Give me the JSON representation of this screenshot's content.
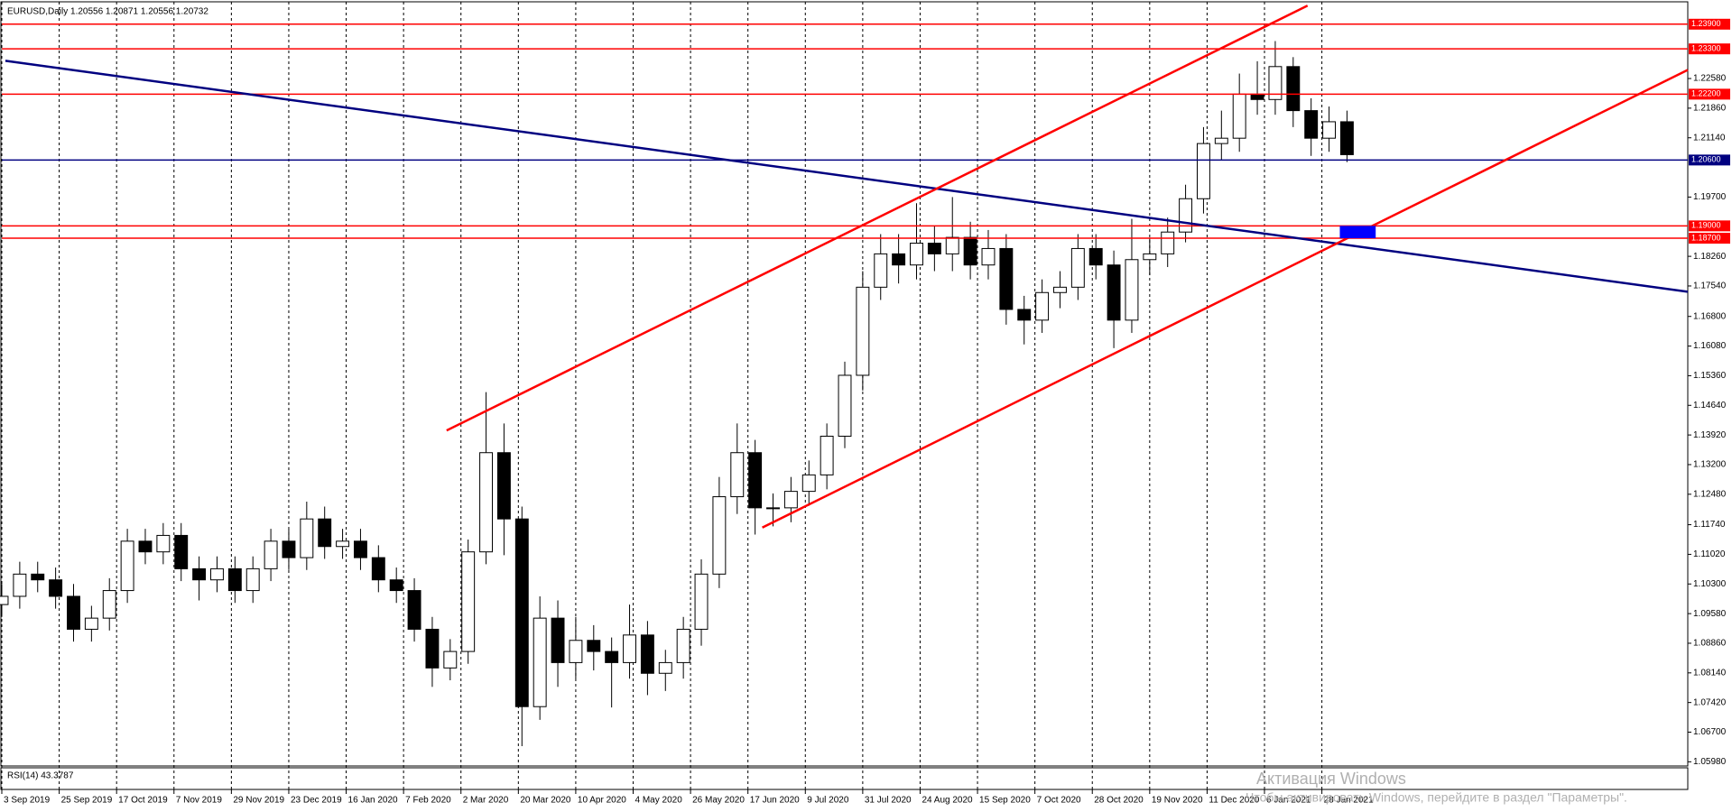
{
  "chart_data": {
    "type": "candlestick",
    "title": "EURUSD,Daily  1.20556 1.20871 1.20556 1.20732",
    "x": [
      0,
      5,
      10,
      15,
      20,
      25,
      30,
      35,
      40,
      45,
      50,
      55,
      60,
      65,
      70,
      75,
      80,
      85,
      90,
      95,
      100,
      105,
      110,
      115,
      120,
      125,
      130,
      135,
      140,
      145,
      150,
      155,
      160,
      165,
      170,
      175,
      180,
      185,
      190,
      195,
      200,
      205,
      210,
      215,
      220,
      225,
      230,
      235,
      240,
      245,
      250,
      255,
      260,
      265,
      270,
      275,
      280,
      285,
      290,
      295,
      300,
      305,
      310,
      315,
      320,
      325,
      330,
      335,
      340,
      345,
      350,
      355,
      360,
      365,
      370,
      375
    ],
    "open": [
      1.098,
      1.1,
      1.1054,
      1.104,
      1.1,
      1.092,
      1.0947,
      1.1014,
      1.1134,
      1.1108,
      1.1148,
      1.1067,
      1.104,
      1.1067,
      1.1014,
      1.1067,
      1.1134,
      1.1094,
      1.1188,
      1.1121,
      1.1134,
      1.1094,
      1.104,
      1.1014,
      1.092,
      1.0826,
      1.0866,
      1.1108,
      1.1349,
      1.1188,
      1.0732,
      1.0947,
      1.0839,
      1.0893,
      1.0866,
      1.0839,
      1.0906,
      1.0813,
      1.0839,
      1.092,
      1.1054,
      1.1242,
      1.1349,
      1.1215,
      1.1215,
      1.1255,
      1.1295,
      1.1389,
      1.1537,
      1.1751,
      1.1832,
      1.1805,
      1.1858,
      1.1832,
      1.1872,
      1.1805,
      1.1845,
      1.1697,
      1.1671,
      1.1738,
      1.1751,
      1.1845,
      1.1805,
      1.1671,
      1.1818,
      1.1832,
      1.1885,
      1.1966,
      1.21,
      1.2113,
      1.222,
      1.2207,
      1.2287,
      1.218,
      1.2113,
      1.2153
    ],
    "high": [
      1.103,
      1.1084,
      1.1084,
      1.107,
      1.103,
      1.0977,
      1.1044,
      1.1164,
      1.1164,
      1.1178,
      1.1178,
      1.1097,
      1.1097,
      1.1097,
      1.1097,
      1.1164,
      1.1164,
      1.123,
      1.1218,
      1.1164,
      1.1164,
      1.1124,
      1.107,
      1.1044,
      1.095,
      1.0896,
      1.1138,
      1.1496,
      1.142,
      1.1218,
      1.1,
      1.099,
      1.095,
      1.093,
      1.09,
      1.098,
      1.094,
      1.087,
      1.095,
      1.109,
      1.129,
      1.142,
      1.138,
      1.125,
      1.129,
      1.133,
      1.142,
      1.157,
      1.179,
      1.188,
      1.188,
      1.1955,
      1.19,
      1.197,
      1.191,
      1.189,
      1.188,
      1.173,
      1.177,
      1.179,
      1.188,
      1.188,
      1.184,
      1.1917,
      1.187,
      1.192,
      1.2,
      1.214,
      1.218,
      1.227,
      1.23,
      1.2349,
      1.231,
      1.221,
      1.219,
      1.218
    ],
    "low": [
      1.095,
      1.097,
      1.101,
      1.097,
      1.089,
      1.089,
      1.0917,
      1.0984,
      1.1078,
      1.1078,
      1.1037,
      1.099,
      1.101,
      1.0984,
      1.0984,
      1.1037,
      1.1064,
      1.1064,
      1.1091,
      1.1091,
      1.1064,
      1.101,
      1.0984,
      1.089,
      1.078,
      1.0796,
      1.0836,
      1.1078,
      1.11,
      1.0636,
      1.07,
      1.078,
      1.08,
      1.082,
      1.073,
      1.08,
      1.076,
      1.077,
      1.08,
      1.088,
      1.102,
      1.12,
      1.115,
      1.117,
      1.118,
      1.122,
      1.126,
      1.136,
      1.15,
      1.172,
      1.176,
      1.177,
      1.179,
      1.179,
      1.177,
      1.177,
      1.166,
      1.1612,
      1.164,
      1.17,
      1.172,
      1.177,
      1.1603,
      1.164,
      1.178,
      1.18,
      1.186,
      1.193,
      1.206,
      1.208,
      1.217,
      1.217,
      1.214,
      1.207,
      1.208,
      1.2055
    ],
    "close": [
      1.1,
      1.1054,
      1.104,
      1.1,
      1.092,
      1.0947,
      1.1014,
      1.1134,
      1.1108,
      1.1148,
      1.1067,
      1.104,
      1.1067,
      1.1014,
      1.1067,
      1.1134,
      1.1094,
      1.1188,
      1.1121,
      1.1134,
      1.1094,
      1.104,
      1.1014,
      1.092,
      1.0826,
      1.0866,
      1.1108,
      1.1349,
      1.1188,
      1.0732,
      1.0947,
      1.0839,
      1.0893,
      1.0866,
      1.0839,
      1.0906,
      1.0813,
      1.0839,
      1.092,
      1.1054,
      1.1242,
      1.1349,
      1.1215,
      1.1215,
      1.1255,
      1.1295,
      1.1389,
      1.1537,
      1.1751,
      1.1832,
      1.1805,
      1.1858,
      1.1832,
      1.1872,
      1.1805,
      1.1845,
      1.1697,
      1.1671,
      1.1738,
      1.1751,
      1.1845,
      1.1805,
      1.1671,
      1.1818,
      1.1832,
      1.1885,
      1.1966,
      1.21,
      1.2113,
      1.222,
      1.2207,
      1.2287,
      1.218,
      1.2113,
      1.2153,
      1.2073
    ],
    "color_up": "#ffffff",
    "color_down": "#000000",
    "line_color": "#000000",
    "xlim": [
      0,
      470
    ],
    "ylim": [
      1.059,
      1.244
    ],
    "grid": true,
    "xticks": [
      {
        "value": 0,
        "label": "3 Sep 2019"
      },
      {
        "value": 16,
        "label": "25 Sep 2019"
      },
      {
        "value": 32,
        "label": "17 Oct 2019"
      },
      {
        "value": 48,
        "label": "7 Nov 2019"
      },
      {
        "value": 64,
        "label": "29 Nov 2019"
      },
      {
        "value": 80,
        "label": "23 Dec 2019"
      },
      {
        "value": 96,
        "label": "16 Jan 2020"
      },
      {
        "value": 112,
        "label": "7 Feb 2020"
      },
      {
        "value": 128,
        "label": "2 Mar 2020"
      },
      {
        "value": 144,
        "label": "20 Mar 2020"
      },
      {
        "value": 160,
        "label": "10 Apr 2020"
      },
      {
        "value": 176,
        "label": "4 May 2020"
      },
      {
        "value": 192,
        "label": "26 May 2020"
      },
      {
        "value": 208,
        "label": "17 Jun 2020"
      },
      {
        "value": 224,
        "label": "9 Jul 2020"
      },
      {
        "value": 240,
        "label": "31 Jul 2020"
      },
      {
        "value": 256,
        "label": "24 Aug 2020"
      },
      {
        "value": 272,
        "label": "15 Sep 2020"
      },
      {
        "value": 288,
        "label": "7 Oct 2020"
      },
      {
        "value": 304,
        "label": "28 Oct 2020"
      },
      {
        "value": 320,
        "label": "19 Nov 2020"
      },
      {
        "value": 336,
        "label": "11 Dec 2020"
      },
      {
        "value": 352,
        "label": "6 Jan 2021"
      },
      {
        "value": 368,
        "label": "28 Jan 2021"
      }
    ],
    "yticks": [
      {
        "value": 1.0598,
        "label": "1.05980"
      },
      {
        "value": 1.067,
        "label": "1.06700"
      },
      {
        "value": 1.0742,
        "label": "1.07420"
      },
      {
        "value": 1.0814,
        "label": "1.08140"
      },
      {
        "value": 1.0886,
        "label": "1.08860"
      },
      {
        "value": 1.0958,
        "label": "1.09580"
      },
      {
        "value": 1.103,
        "label": "1.10300"
      },
      {
        "value": 1.1102,
        "label": "1.11020"
      },
      {
        "value": 1.1174,
        "label": "1.11740"
      },
      {
        "value": 1.1248,
        "label": "1.12480"
      },
      {
        "value": 1.132,
        "label": "1.13200"
      },
      {
        "value": 1.1392,
        "label": "1.13920"
      },
      {
        "value": 1.1464,
        "label": "1.14640"
      },
      {
        "value": 1.1536,
        "label": "1.15360"
      },
      {
        "value": 1.1608,
        "label": "1.16080"
      },
      {
        "value": 1.168,
        "label": "1.16800"
      },
      {
        "value": 1.1754,
        "label": "1.17540"
      },
      {
        "value": 1.1826,
        "label": "1.18260"
      },
      {
        "value": 1.197,
        "label": "1.19700"
      },
      {
        "value": 1.2114,
        "label": "1.21140"
      },
      {
        "value": 1.2186,
        "label": "1.21860"
      },
      {
        "value": 1.2258,
        "label": "1.22580"
      }
    ],
    "levels": [
      {
        "value": 1.239,
        "label": "1.23900",
        "color": "#ff0000"
      },
      {
        "value": 1.233,
        "label": "1.23300",
        "color": "#ff0000"
      },
      {
        "value": 1.222,
        "label": "1.22200",
        "color": "#ff0000"
      },
      {
        "value": 1.206,
        "label": "1.20600",
        "color": "#000080"
      },
      {
        "value": 1.19,
        "label": "1.19000",
        "color": "#ff0000"
      },
      {
        "value": 1.187,
        "label": "1.18700",
        "color": "#ff0000"
      }
    ],
    "trendlines": [
      {
        "color": "#000080",
        "points": [
          [
            1,
            1.2301
          ],
          [
            470,
            1.174
          ]
        ]
      },
      {
        "color": "#ff0000",
        "points": [
          [
            124,
            1.1403
          ],
          [
            364,
            1.2435
          ]
        ]
      },
      {
        "color": "#ff0000",
        "points": [
          [
            212,
            1.1167
          ],
          [
            470,
            1.2279
          ]
        ]
      }
    ],
    "zones": [
      {
        "color": "#0000ff",
        "x": [
          373,
          383
        ],
        "y": [
          1.187,
          1.19
        ]
      }
    ],
    "indicator": {
      "title": "RSI(14) 43.3787"
    },
    "watermark": [
      "Активация Windows",
      "Чтобы активировать Windows, перейдите в раздел \"Параметры\"."
    ]
  }
}
